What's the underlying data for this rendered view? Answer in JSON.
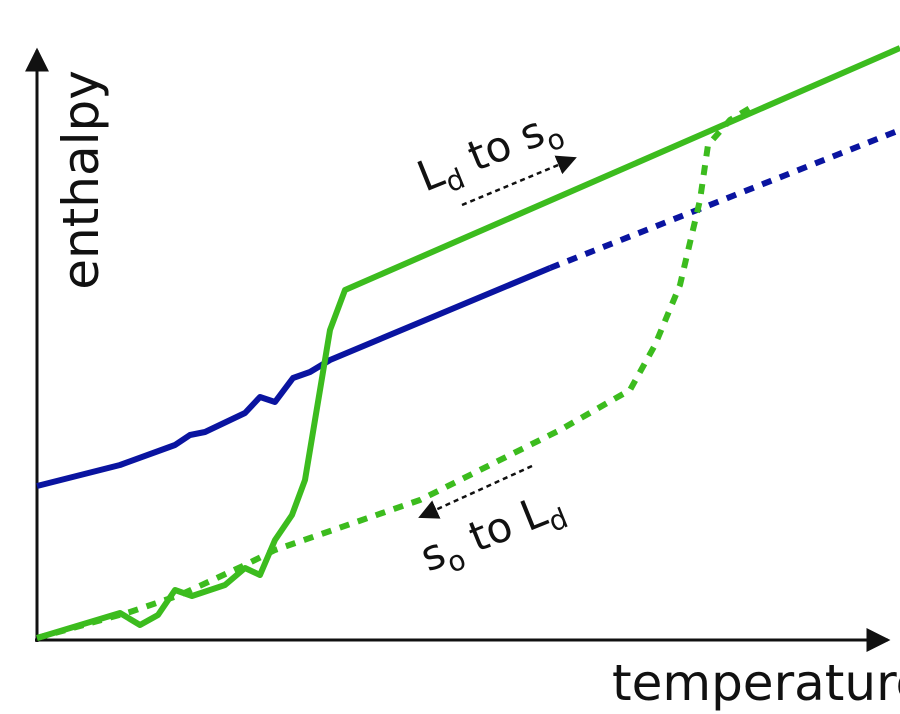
{
  "axes": {
    "y_label": "enthalpy",
    "x_label": "temperature"
  },
  "annotations": [
    {
      "main1": "L",
      "sub1": "d",
      "main2": " to s",
      "sub2": "o"
    },
    {
      "main1": "s",
      "sub1": "o",
      "main2": " to L",
      "sub2": "d"
    }
  ]
}
